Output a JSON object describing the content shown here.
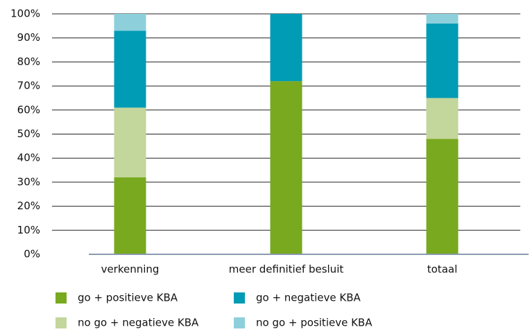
{
  "chart_data": {
    "type": "stacked_bar",
    "categories": [
      "verkenning",
      "meer definitief besluit",
      "totaal"
    ],
    "series": [
      {
        "name": "go + positieve KBA",
        "color": "#78a91f",
        "values": [
          32,
          72,
          48
        ]
      },
      {
        "name": "no go + negatieve KBA",
        "color": "#c3d69b",
        "values": [
          29,
          0,
          17
        ]
      },
      {
        "name": "go + negatieve KBA",
        "color": "#009bb4",
        "values": [
          32,
          28,
          31
        ]
      },
      {
        "name": "no go + positieve KBA",
        "color": "#8dd0dc",
        "values": [
          7,
          0,
          4
        ]
      }
    ],
    "ylim": [
      0,
      100
    ],
    "yticks": [
      {
        "value": 0,
        "label": "0%"
      },
      {
        "value": 10,
        "label": "10%"
      },
      {
        "value": 20,
        "label": "20%"
      },
      {
        "value": 30,
        "label": "30%"
      },
      {
        "value": 40,
        "label": "40%"
      },
      {
        "value": 50,
        "label": "50%"
      },
      {
        "value": 60,
        "label": "60%"
      },
      {
        "value": 70,
        "label": "70%"
      },
      {
        "value": 80,
        "label": "80%"
      },
      {
        "value": 90,
        "label": "90%"
      },
      {
        "value": 100,
        "label": "100%"
      }
    ],
    "grid": true
  }
}
